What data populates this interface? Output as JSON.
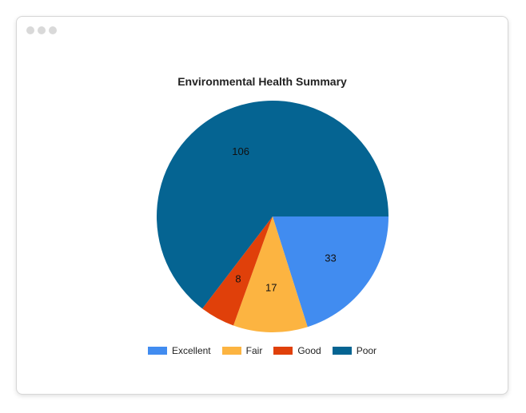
{
  "chart_data": {
    "type": "pie",
    "title": "Environmental Health Summary",
    "categories": [
      "Excellent",
      "Fair",
      "Good",
      "Poor"
    ],
    "values": [
      33,
      17,
      8,
      106
    ],
    "colors": [
      "#418cf0",
      "#fcb441",
      "#e0400a",
      "#056492"
    ],
    "legend": "bottom",
    "data_labels": true
  },
  "window": {
    "dot_color": "#d9d9d9"
  }
}
